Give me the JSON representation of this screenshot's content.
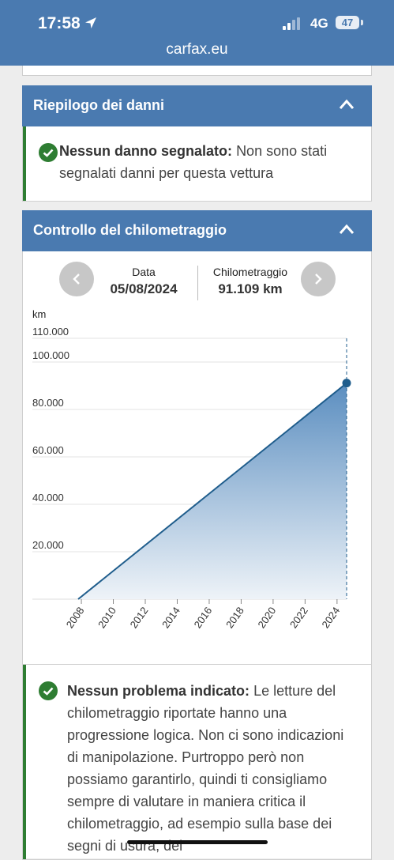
{
  "status": {
    "time": "17:58",
    "network": "4G",
    "battery": "47"
  },
  "browser": {
    "url": "carfax.eu"
  },
  "damage": {
    "title": "Riepilogo dei danni",
    "bold": "Nessun danno segnalato:",
    "text": "Non sono stati segnalati danni per questa vettura"
  },
  "mileage": {
    "title": "Controllo del chilometraggio",
    "date_label": "Data",
    "date_value": "05/08/2024",
    "km_label": "Chilometraggio",
    "km_value": "91.109 km",
    "unit": "km",
    "bold": "Nessun problema indicato:",
    "text": "Le letture del chilometraggio riportate hanno una progressione logica. Non ci sono indicazioni di manipolazione. Purtroppo però non possiamo garantirlo, quindi ti consigliamo sempre di valutare in maniera critica il chilometraggio, ad esempio sulla base dei segni di usura, del"
  },
  "chart_data": {
    "type": "area",
    "x": [
      2007.8,
      2024.6
    ],
    "y": [
      0,
      91109
    ],
    "xticks": [
      "2008",
      "2010",
      "2012",
      "2014",
      "2016",
      "2018",
      "2020",
      "2022",
      "2024"
    ],
    "yticks": [
      "20.000",
      "40.000",
      "60.000",
      "80.000",
      "100.000",
      "110.000"
    ],
    "ytick_values": [
      20000,
      40000,
      60000,
      80000,
      100000,
      110000
    ],
    "ylabel": "km",
    "xlim": [
      2007.8,
      2024.6
    ],
    "ylim": [
      0,
      110000
    ],
    "selected_point": {
      "date": "05/08/2024",
      "value": 91109
    },
    "grid": true,
    "colors": {
      "line": "#1f5d8c",
      "fill_top": "#5b8ec0",
      "fill_bottom": "#eef3f8",
      "marker": "#1f5d8c"
    }
  }
}
